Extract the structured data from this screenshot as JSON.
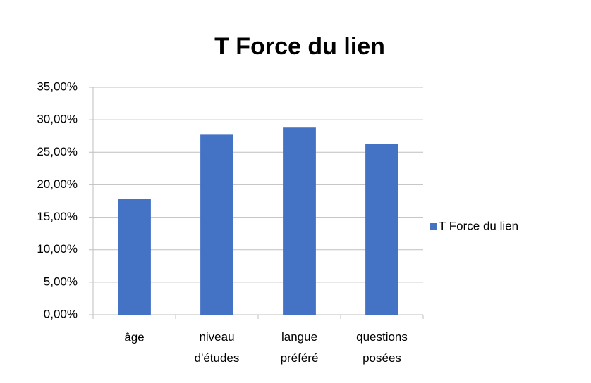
{
  "chart_data": {
    "type": "bar",
    "title": "T Force du lien",
    "categories": [
      "âge",
      "niveau d'études",
      "langue préféré",
      "questions posées"
    ],
    "series": [
      {
        "name": "T Force du lien",
        "color": "#4472c4",
        "values": [
          17.8,
          27.7,
          28.8,
          26.3
        ]
      }
    ],
    "ylim": [
      0,
      35
    ],
    "yticks": [
      {
        "value": 0,
        "label": "0,00%"
      },
      {
        "value": 5,
        "label": "5,00%"
      },
      {
        "value": 10,
        "label": "10,00%"
      },
      {
        "value": 15,
        "label": "15,00%"
      },
      {
        "value": 20,
        "label": "20,00%"
      },
      {
        "value": 25,
        "label": "25,00%"
      },
      {
        "value": 30,
        "label": "30,00%"
      },
      {
        "value": 35,
        "label": "35,00%"
      }
    ],
    "grid": true,
    "legend": "right"
  }
}
